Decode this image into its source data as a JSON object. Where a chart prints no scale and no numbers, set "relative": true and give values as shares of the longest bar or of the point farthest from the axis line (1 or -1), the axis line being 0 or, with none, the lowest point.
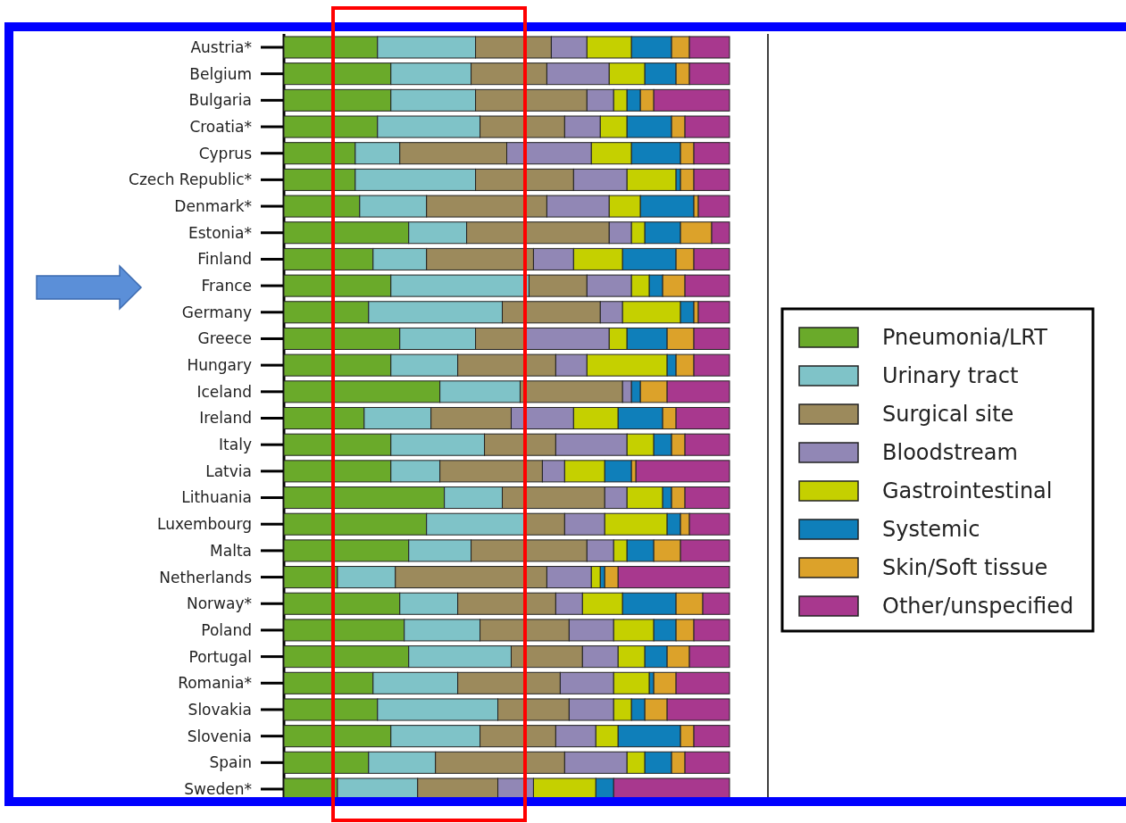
{
  "chart_data": {
    "type": "bar",
    "orientation": "horizontal",
    "stacked": true,
    "relative": true,
    "legend": "right",
    "categories": [
      "Austria*",
      "Belgium",
      "Bulgaria",
      "Croatia*",
      "Cyprus",
      "Czech Republic*",
      "Denmark*",
      "Estonia*",
      "Finland",
      "France",
      "Germany",
      "Greece",
      "Hungary",
      "Iceland",
      "Ireland",
      "Italy",
      "Latvia",
      "Lithuania",
      "Luxembourg",
      "Malta",
      "Netherlands",
      "Norway*",
      "Poland",
      "Portugal",
      "Romania*",
      "Slovakia",
      "Slovenia",
      "Spain",
      "Sweden*"
    ],
    "series": [
      {
        "name": "Pneumonia/LRT",
        "color": "#6aaa2a",
        "values": [
          0.21,
          0.24,
          0.24,
          0.21,
          0.16,
          0.16,
          0.17,
          0.28,
          0.2,
          0.24,
          0.19,
          0.26,
          0.24,
          0.35,
          0.18,
          0.24,
          0.24,
          0.36,
          0.32,
          0.28,
          0.12,
          0.26,
          0.27,
          0.28,
          0.2,
          0.21,
          0.24,
          0.19,
          0.12
        ]
      },
      {
        "name": "Urinary tract",
        "color": "#7fc3c8",
        "values": [
          0.22,
          0.18,
          0.19,
          0.23,
          0.1,
          0.27,
          0.15,
          0.13,
          0.12,
          0.31,
          0.3,
          0.17,
          0.15,
          0.18,
          0.15,
          0.21,
          0.11,
          0.13,
          0.22,
          0.14,
          0.13,
          0.13,
          0.17,
          0.23,
          0.19,
          0.27,
          0.2,
          0.15,
          0.18
        ]
      },
      {
        "name": "Surgical site",
        "color": "#9c8a5c",
        "values": [
          0.17,
          0.17,
          0.25,
          0.19,
          0.24,
          0.22,
          0.27,
          0.32,
          0.24,
          0.13,
          0.22,
          0.11,
          0.22,
          0.23,
          0.18,
          0.16,
          0.23,
          0.23,
          0.09,
          0.26,
          0.34,
          0.22,
          0.2,
          0.16,
          0.23,
          0.16,
          0.17,
          0.29,
          0.18
        ]
      },
      {
        "name": "Bloodstream",
        "color": "#9187b5",
        "values": [
          0.08,
          0.14,
          0.06,
          0.08,
          0.19,
          0.12,
          0.14,
          0.05,
          0.09,
          0.1,
          0.05,
          0.19,
          0.07,
          0.02,
          0.14,
          0.16,
          0.05,
          0.05,
          0.09,
          0.06,
          0.1,
          0.06,
          0.1,
          0.08,
          0.12,
          0.1,
          0.09,
          0.14,
          0.08
        ]
      },
      {
        "name": "Gastrointestinal",
        "color": "#c5d000",
        "values": [
          0.1,
          0.08,
          0.03,
          0.06,
          0.09,
          0.11,
          0.07,
          0.03,
          0.11,
          0.04,
          0.13,
          0.04,
          0.18,
          0.0,
          0.1,
          0.06,
          0.09,
          0.08,
          0.14,
          0.03,
          0.02,
          0.09,
          0.09,
          0.06,
          0.08,
          0.04,
          0.05,
          0.04,
          0.14
        ]
      },
      {
        "name": "Systemic",
        "color": "#0f7fba",
        "values": [
          0.09,
          0.07,
          0.03,
          0.1,
          0.11,
          0.01,
          0.12,
          0.08,
          0.12,
          0.03,
          0.03,
          0.09,
          0.02,
          0.02,
          0.1,
          0.04,
          0.06,
          0.02,
          0.03,
          0.06,
          0.01,
          0.12,
          0.05,
          0.05,
          0.01,
          0.03,
          0.14,
          0.06,
          0.04
        ]
      },
      {
        "name": "Skin/Soft tissue",
        "color": "#dca22a",
        "values": [
          0.04,
          0.03,
          0.03,
          0.03,
          0.03,
          0.03,
          0.01,
          0.07,
          0.04,
          0.05,
          0.01,
          0.06,
          0.04,
          0.06,
          0.03,
          0.03,
          0.01,
          0.03,
          0.02,
          0.06,
          0.03,
          0.06,
          0.04,
          0.05,
          0.05,
          0.05,
          0.03,
          0.03,
          0.0
        ]
      },
      {
        "name": "Other/unspecified",
        "color": "#a8388e",
        "values": [
          0.09,
          0.09,
          0.17,
          0.1,
          0.08,
          0.08,
          0.07,
          0.04,
          0.08,
          0.1,
          0.07,
          0.08,
          0.08,
          0.14,
          0.12,
          0.1,
          0.21,
          0.1,
          0.09,
          0.11,
          0.25,
          0.06,
          0.08,
          0.09,
          0.12,
          0.14,
          0.08,
          0.1,
          0.26
        ]
      }
    ]
  }
}
